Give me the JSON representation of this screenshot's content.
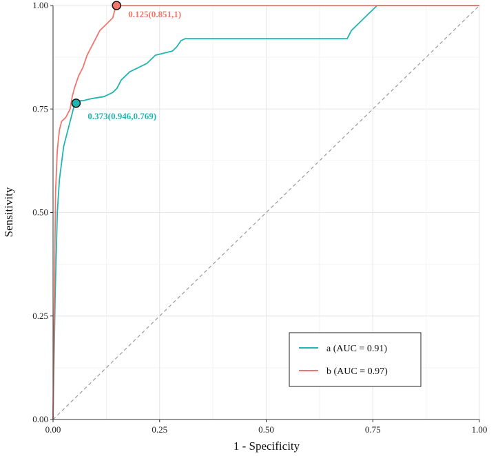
{
  "chart_data": {
    "type": "line",
    "xlabel": "1 - Specificity",
    "ylabel": "Sensitivity",
    "xlim": [
      0,
      1
    ],
    "ylim": [
      0,
      1
    ],
    "x_ticks": [
      "0.00",
      "0.25",
      "0.50",
      "0.75",
      "1.00"
    ],
    "y_ticks": [
      "0.00",
      "0.25",
      "0.50",
      "0.75",
      "1.00"
    ],
    "grid": true,
    "legend_position": "bottom-right",
    "reference_line": {
      "x": [
        0,
        1
      ],
      "y": [
        0,
        1
      ],
      "style": "dashed",
      "color": "#999999"
    },
    "series": [
      {
        "name": "a (AUC = 0.91)",
        "color": "#1fb5b0",
        "x": [
          0,
          0.005,
          0.01,
          0.015,
          0.02,
          0.025,
          0.03,
          0.035,
          0.04,
          0.045,
          0.05,
          0.055,
          0.06,
          0.07,
          0.09,
          0.12,
          0.14,
          0.15,
          0.16,
          0.17,
          0.18,
          0.2,
          0.22,
          0.23,
          0.24,
          0.26,
          0.28,
          0.29,
          0.3,
          0.31,
          0.4,
          0.5,
          0.6,
          0.69,
          0.7,
          0.71,
          0.73,
          0.74,
          0.75,
          0.76,
          0.8,
          0.9,
          1.0
        ],
        "y": [
          0,
          0.3,
          0.5,
          0.58,
          0.62,
          0.66,
          0.68,
          0.7,
          0.72,
          0.74,
          0.76,
          0.765,
          0.77,
          0.77,
          0.775,
          0.78,
          0.79,
          0.8,
          0.82,
          0.83,
          0.84,
          0.85,
          0.86,
          0.87,
          0.88,
          0.885,
          0.89,
          0.9,
          0.915,
          0.92,
          0.92,
          0.92,
          0.92,
          0.92,
          0.94,
          0.95,
          0.97,
          0.98,
          0.99,
          1.0,
          1.0,
          1.0,
          1.0
        ]
      },
      {
        "name": "b (AUC = 0.97)",
        "color": "#f0766b",
        "x": [
          0,
          0.003,
          0.006,
          0.01,
          0.015,
          0.02,
          0.03,
          0.04,
          0.045,
          0.05,
          0.06,
          0.07,
          0.08,
          0.09,
          0.1,
          0.11,
          0.12,
          0.13,
          0.14,
          0.145,
          0.15,
          0.16,
          0.2,
          0.4,
          0.6,
          0.8,
          1.0
        ],
        "y": [
          0,
          0.3,
          0.55,
          0.65,
          0.7,
          0.72,
          0.73,
          0.75,
          0.78,
          0.8,
          0.83,
          0.85,
          0.88,
          0.9,
          0.92,
          0.94,
          0.95,
          0.96,
          0.97,
          0.99,
          1.0,
          1.0,
          1.0,
          1.0,
          1.0,
          1.0,
          1.0
        ]
      }
    ],
    "annotations": [
      {
        "series": 0,
        "x": 0.054,
        "y": 0.764,
        "label": "0.373(0.946,0.769)"
      },
      {
        "series": 1,
        "x": 0.149,
        "y": 1.0,
        "label": "0.125(0.851,1)"
      }
    ]
  }
}
